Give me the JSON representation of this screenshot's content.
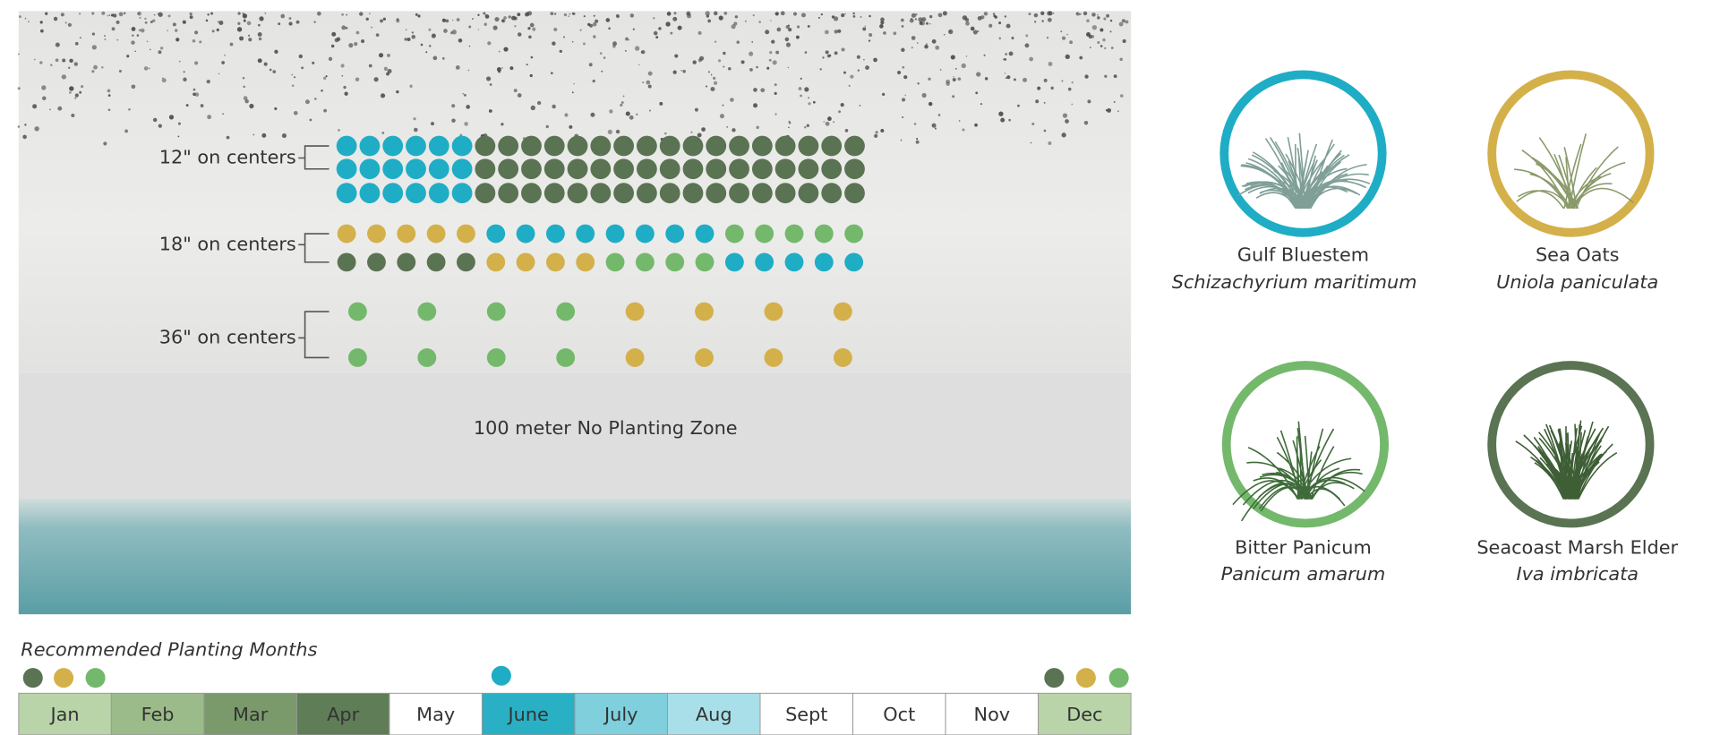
{
  "spacing_labels": [
    "12\" on centers",
    "18\" on centers",
    "36\" on centers"
  ],
  "zone_label": "100 meter No Planting Zone",
  "plants": [
    {
      "common": "Gulf Bluestem",
      "latin": "Schizachyrium maritimum"
    },
    {
      "common": "Sea Oats",
      "latin": "Uniola paniculata"
    },
    {
      "common": "Bitter Panicum",
      "latin": "Panicum amarum"
    },
    {
      "common": "Seacoast Marsh Elder",
      "latin": "Iva imbricata"
    }
  ],
  "calendar": {
    "title": "Recommended Planting Months",
    "months": [
      "Jan",
      "Feb",
      "Mar",
      "Apr",
      "May",
      "June",
      "July",
      "Aug",
      "Sept",
      "Oct",
      "Nov",
      "Dec"
    ]
  }
}
